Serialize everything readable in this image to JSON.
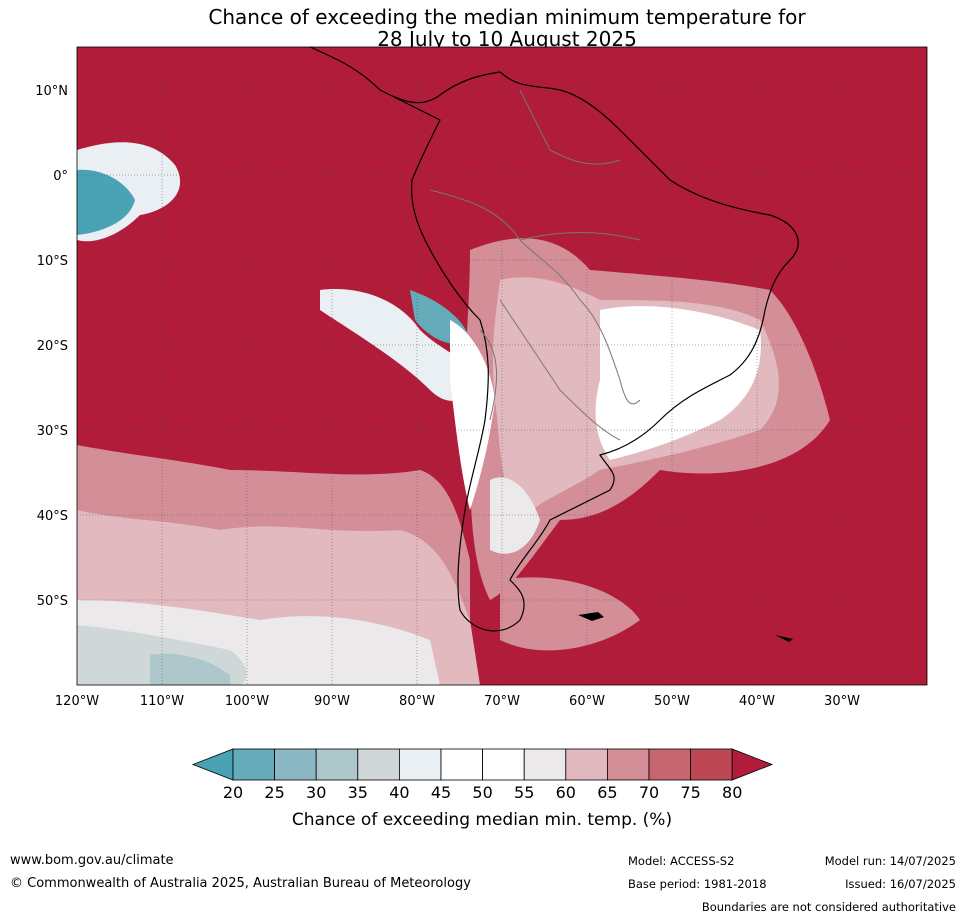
{
  "title": {
    "line1": "Chance of exceeding the median minimum temperature for",
    "line2": "28 July to 10 August 2025"
  },
  "map": {
    "lat_labels": [
      "10°N",
      "0°",
      "10°S",
      "20°S",
      "30°S",
      "40°S",
      "50°S"
    ],
    "lon_labels": [
      "120°W",
      "110°W",
      "100°W",
      "90°W",
      "80°W",
      "70°W",
      "60°W",
      "50°W",
      "40°W",
      "30°W"
    ],
    "dominant_color": "#b01c3a"
  },
  "colorbar": {
    "ticks": [
      "20",
      "25",
      "30",
      "35",
      "40",
      "45",
      "50",
      "55",
      "60",
      "65",
      "70",
      "75",
      "80"
    ],
    "colors": [
      "#65abb9",
      "#8bb7c4",
      "#aec7cb",
      "#cfd7d9",
      "#e9eff2",
      "#ffffff",
      "#ffffff",
      "#ebe9ea",
      "#e2b9bf",
      "#d38e97",
      "#c6666f",
      "#be4754"
    ],
    "low_color": "#4aa3b4",
    "high_color": "#b01c3a",
    "label": "Chance of exceeding median min. temp. (%)"
  },
  "footer": {
    "website": "www.bom.gov.au/climate",
    "copyright": "© Commonwealth of Australia 2025, Australian Bureau of Meteorology",
    "model": "Model: ACCESS-S2",
    "base_period": "Base period: 1981-2018",
    "model_run": "Model run: 14/07/2025",
    "issued": "Issued: 16/07/2025",
    "disclaimer": "Boundaries are not considered authoritative"
  }
}
